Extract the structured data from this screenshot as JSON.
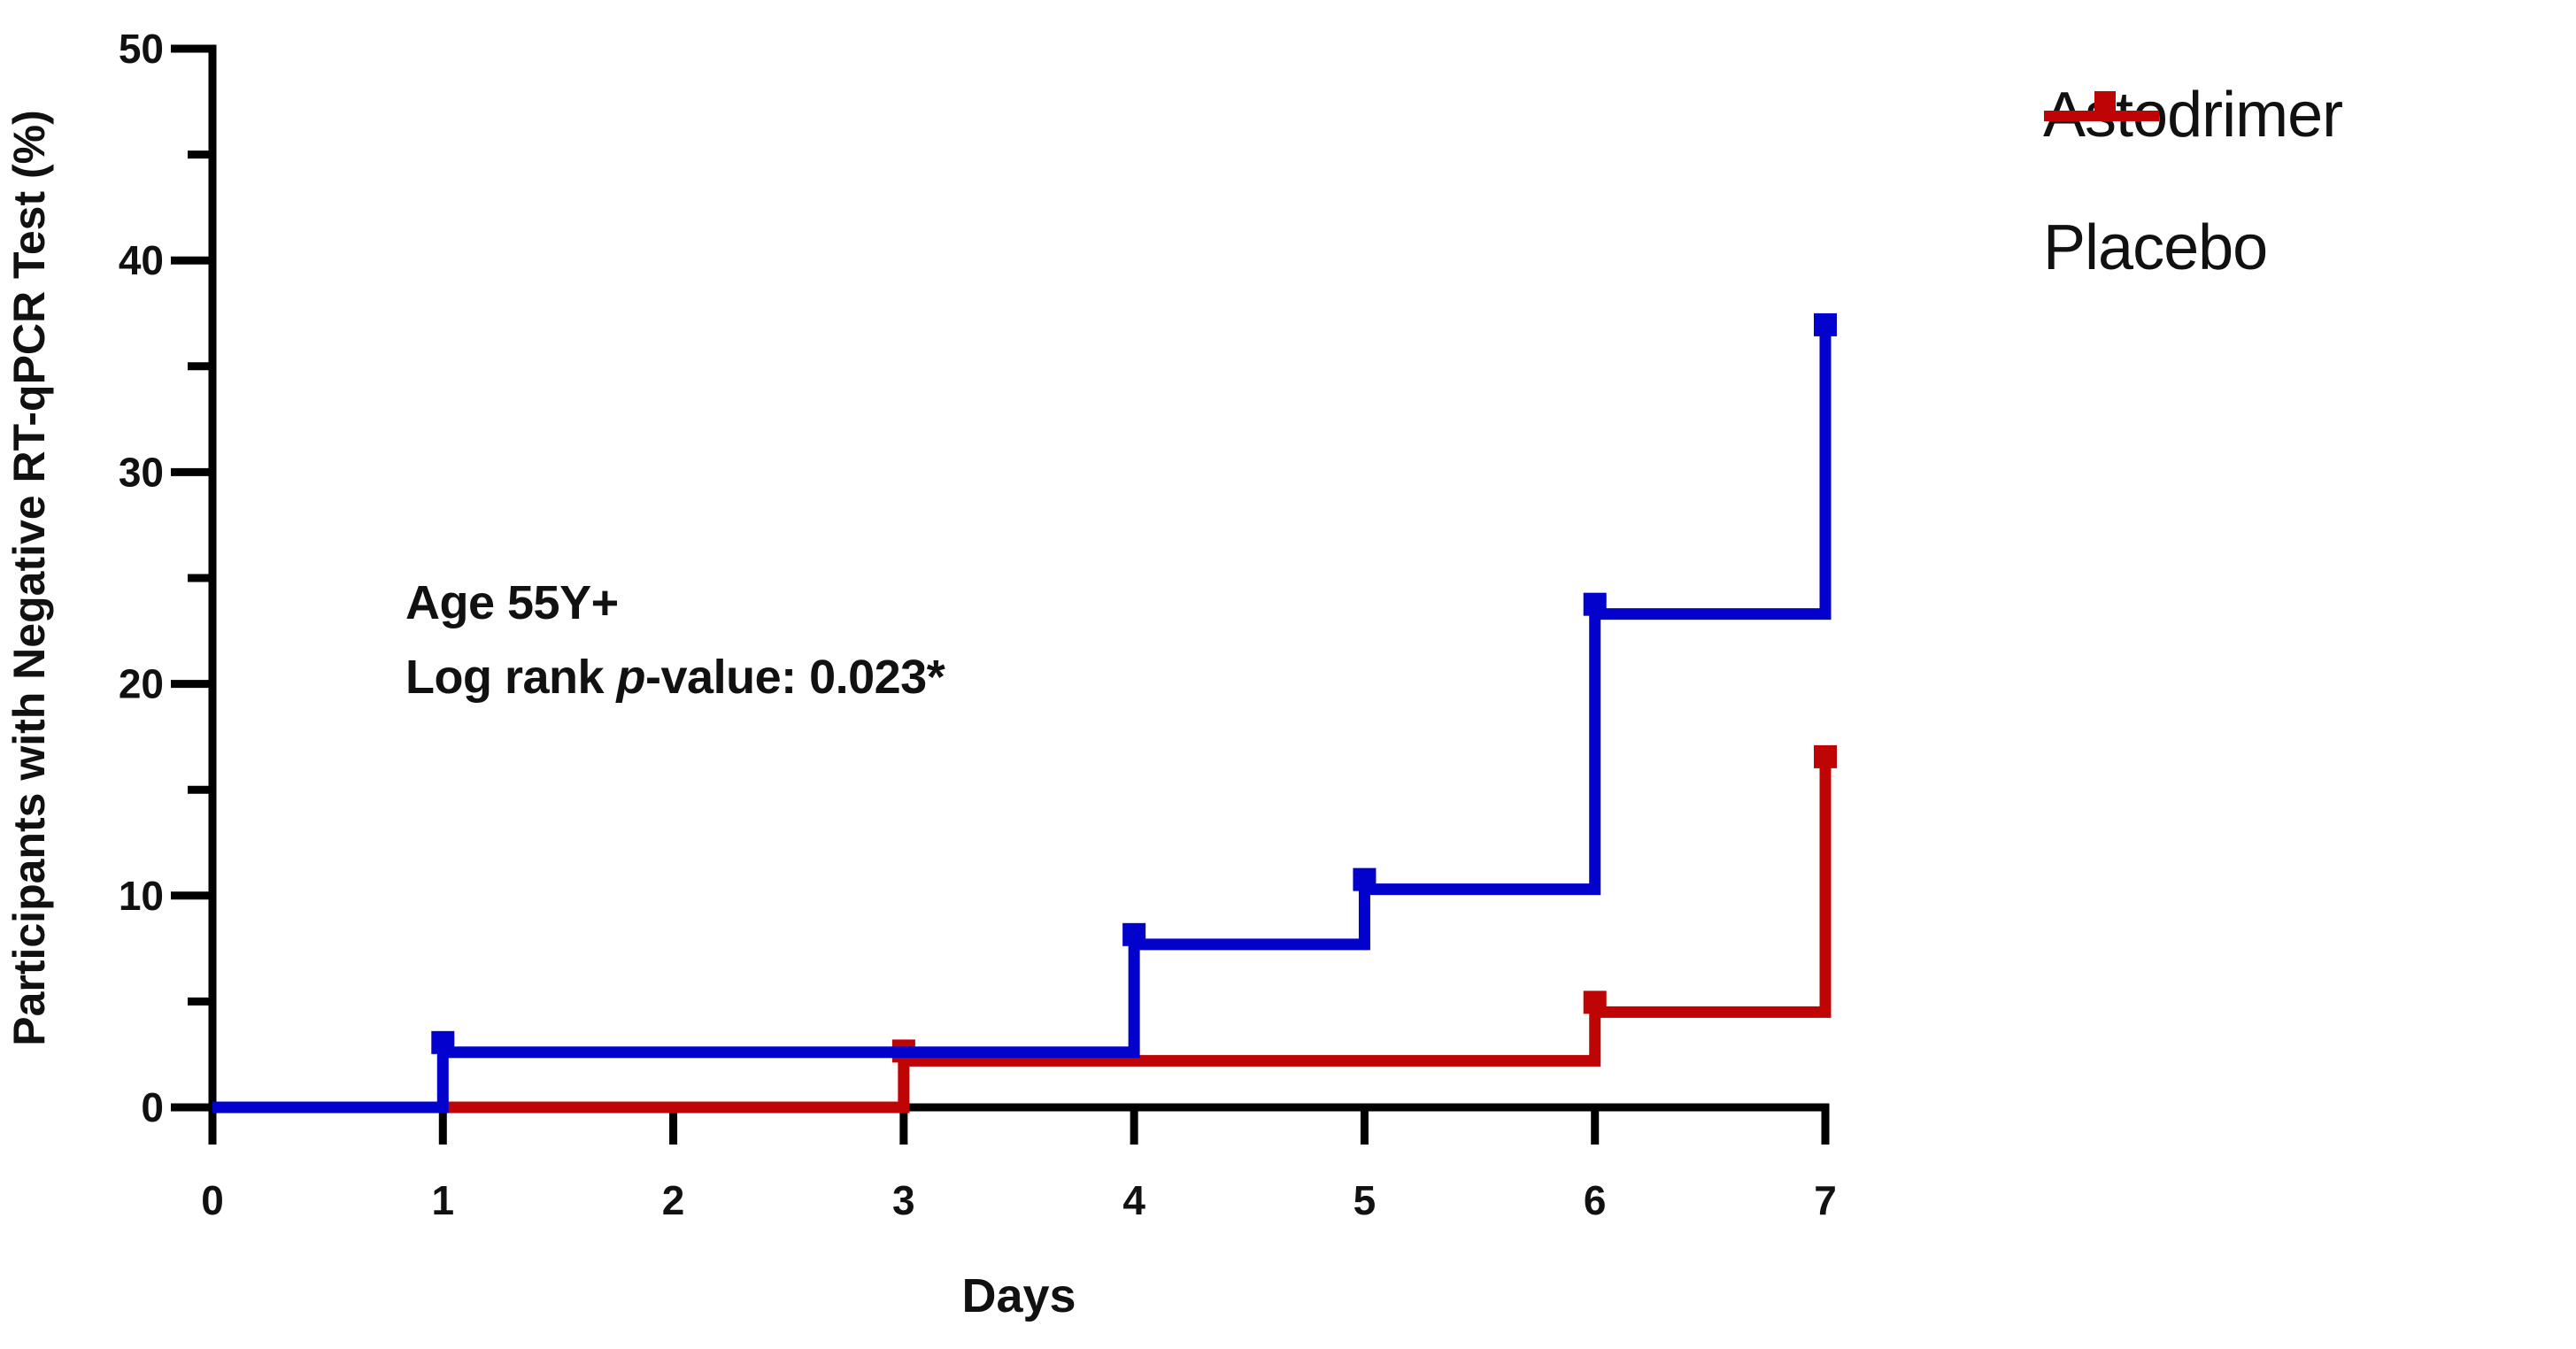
{
  "chart_data": {
    "type": "line",
    "subtype": "kaplan-meier-step",
    "xlabel": "Days",
    "ylabel": "Participants with Negative RT-qPCR Test (%)",
    "xlim": [
      0,
      7
    ],
    "ylim": [
      0,
      50
    ],
    "x_ticks": [
      0,
      1,
      2,
      3,
      4,
      5,
      6,
      7
    ],
    "y_ticks_major": [
      0,
      10,
      20,
      30,
      40,
      50
    ],
    "y_ticks_minor": [
      5,
      15,
      25,
      35,
      45
    ],
    "grid": "off",
    "legend_position": "top-right",
    "axis_color": "#000000",
    "annotation": {
      "line1": "Age 55Y+",
      "line2_prefix": "Log rank ",
      "line2_italic": "p",
      "line2_suffix": "-value: 0.023*"
    },
    "series": [
      {
        "name": "Placebo",
        "color": "#BE0404",
        "steps": [
          [
            0,
            0
          ],
          [
            3,
            2.2
          ],
          [
            6,
            4.5
          ],
          [
            7,
            16.1
          ]
        ]
      },
      {
        "name": "Astodrimer",
        "color": "#0202CC",
        "steps": [
          [
            0,
            0
          ],
          [
            1,
            2.6
          ],
          [
            4,
            7.7
          ],
          [
            5,
            10.3
          ],
          [
            6,
            23.3
          ],
          [
            7,
            36.5
          ]
        ]
      }
    ]
  }
}
